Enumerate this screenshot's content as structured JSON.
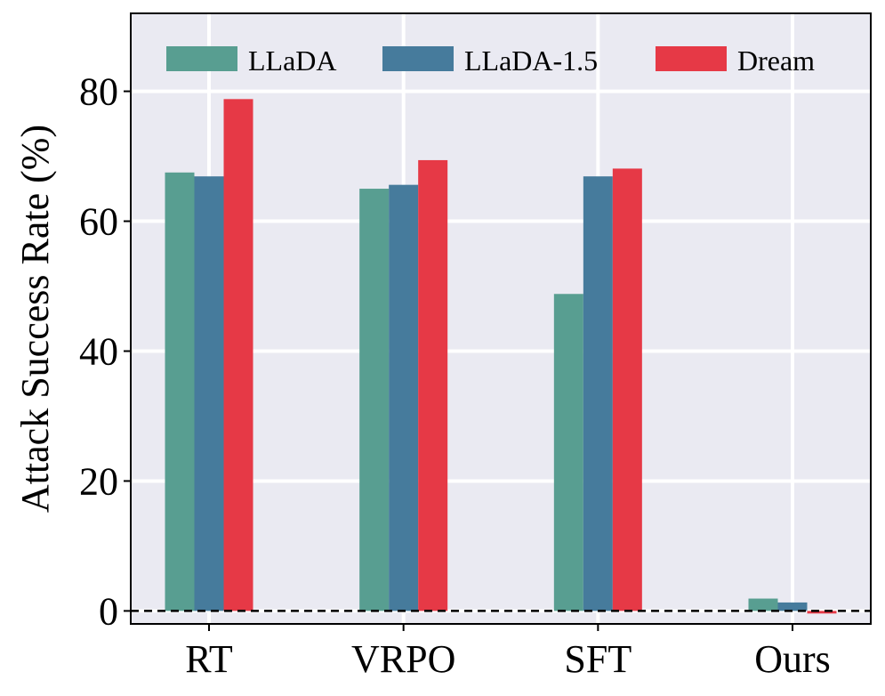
{
  "chart_data": {
    "type": "bar",
    "title": "",
    "xlabel": "",
    "ylabel": "Attack Success Rate (%)",
    "categories": [
      "RT",
      "VRPO",
      "SFT",
      "Ours"
    ],
    "series": [
      {
        "name": "LLaDA",
        "color": "#589E91",
        "values": [
          67.5,
          65.0,
          48.8,
          1.9
        ]
      },
      {
        "name": "LLaDA-1.5",
        "color": "#467B9C",
        "values": [
          66.9,
          65.6,
          66.9,
          1.3
        ]
      },
      {
        "name": "Dream",
        "color": "#E63946",
        "values": [
          78.8,
          69.4,
          68.1,
          -0.4
        ]
      }
    ],
    "ylim": [
      -2,
      92
    ],
    "yticks": [
      0,
      20,
      40,
      60,
      80
    ],
    "grid": true,
    "legend_position": "top",
    "reference_line": {
      "y": 0,
      "style": "dashed",
      "color": "#000000"
    },
    "background_color": "#EAEAF2"
  }
}
